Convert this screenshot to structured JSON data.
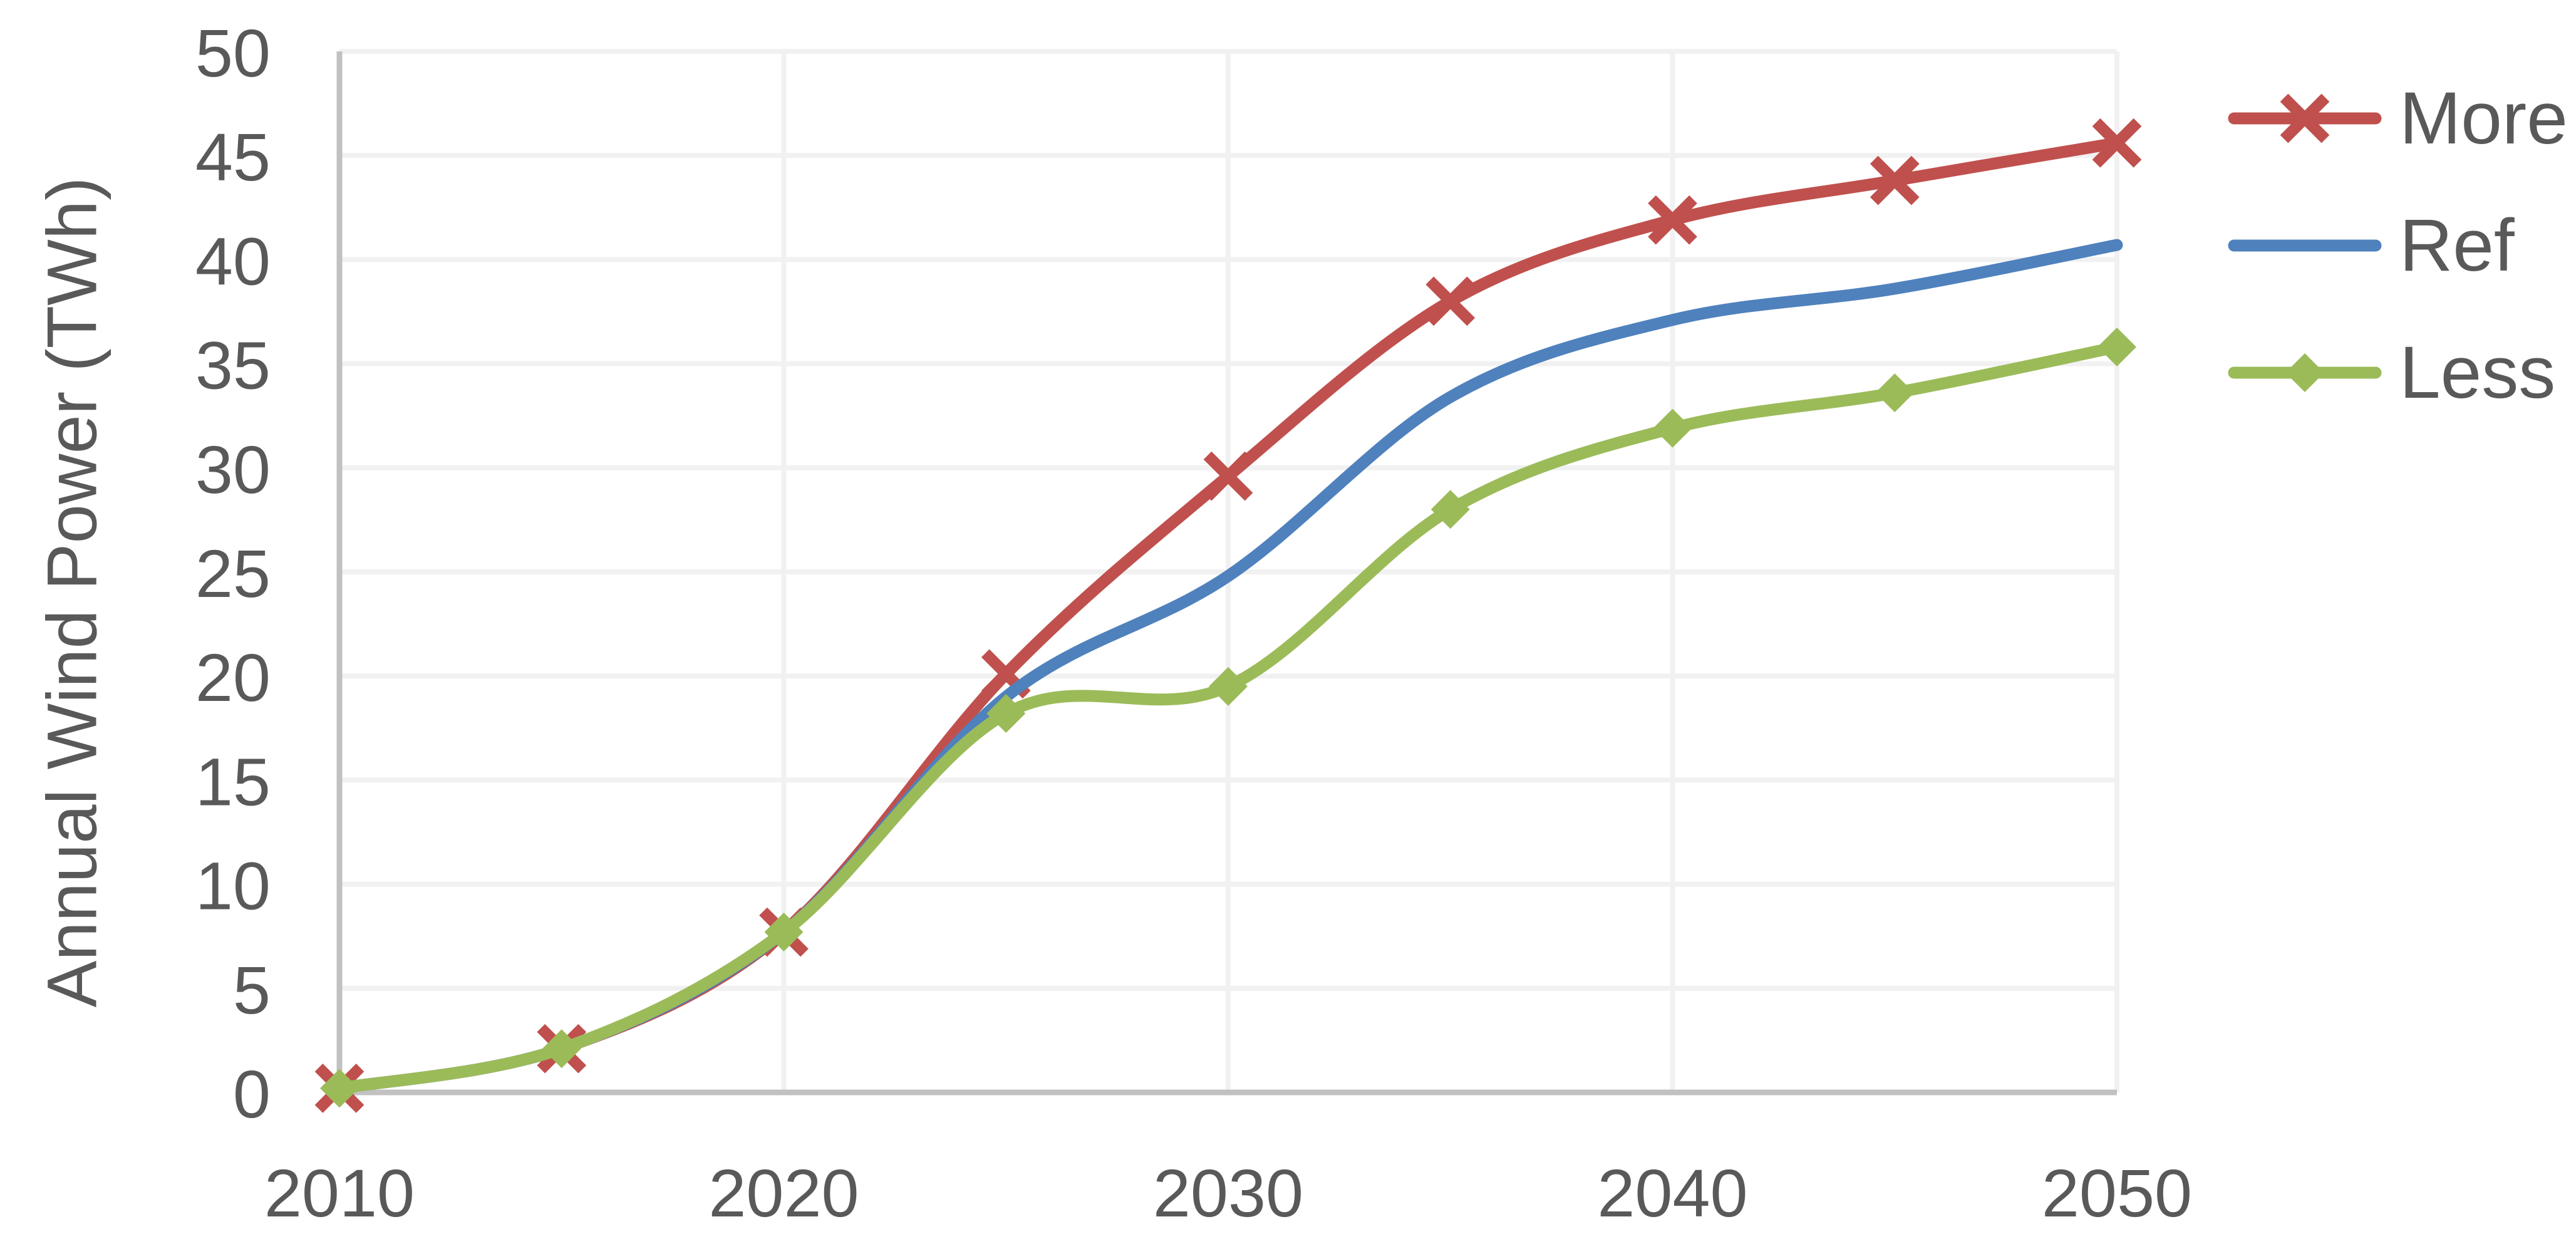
{
  "chart_data": {
    "type": "line",
    "title": "",
    "xlabel": "",
    "ylabel": "Annual Wind Power (TWh)",
    "x": [
      2010,
      2015,
      2020,
      2025,
      2030,
      2035,
      2040,
      2045,
      2050
    ],
    "series": [
      {
        "name": "More",
        "color": "#C0504D",
        "marker": "x",
        "values": [
          0.2,
          2.1,
          7.7,
          20.1,
          29.6,
          38.0,
          41.9,
          43.8,
          45.6
        ]
      },
      {
        "name": "Ref",
        "color": "#4F81BD",
        "marker": "none",
        "values": [
          0.2,
          2.1,
          7.7,
          19.0,
          24.8,
          33.4,
          37.1,
          38.6,
          40.7
        ]
      },
      {
        "name": "Less",
        "color": "#9BBB59",
        "marker": "diamond",
        "values": [
          0.2,
          2.1,
          7.7,
          18.2,
          19.5,
          28.0,
          31.9,
          33.6,
          35.8
        ]
      }
    ],
    "xlim": [
      2010,
      2050
    ],
    "ylim": [
      0,
      50
    ],
    "ytick_step": 5,
    "yticks": [
      0,
      5,
      10,
      15,
      20,
      25,
      30,
      35,
      40,
      45,
      50
    ],
    "xticks": [
      2010,
      2020,
      2030,
      2040,
      2050
    ],
    "grid": {
      "horizontal": true,
      "vertical": true
    },
    "legend_position": "right",
    "smooth_lines": true
  },
  "style_colors": {
    "text": "#595959",
    "gridline": "#F1F1F1",
    "axis_line": "#C1C1C1",
    "background": "#FFFFFF"
  }
}
